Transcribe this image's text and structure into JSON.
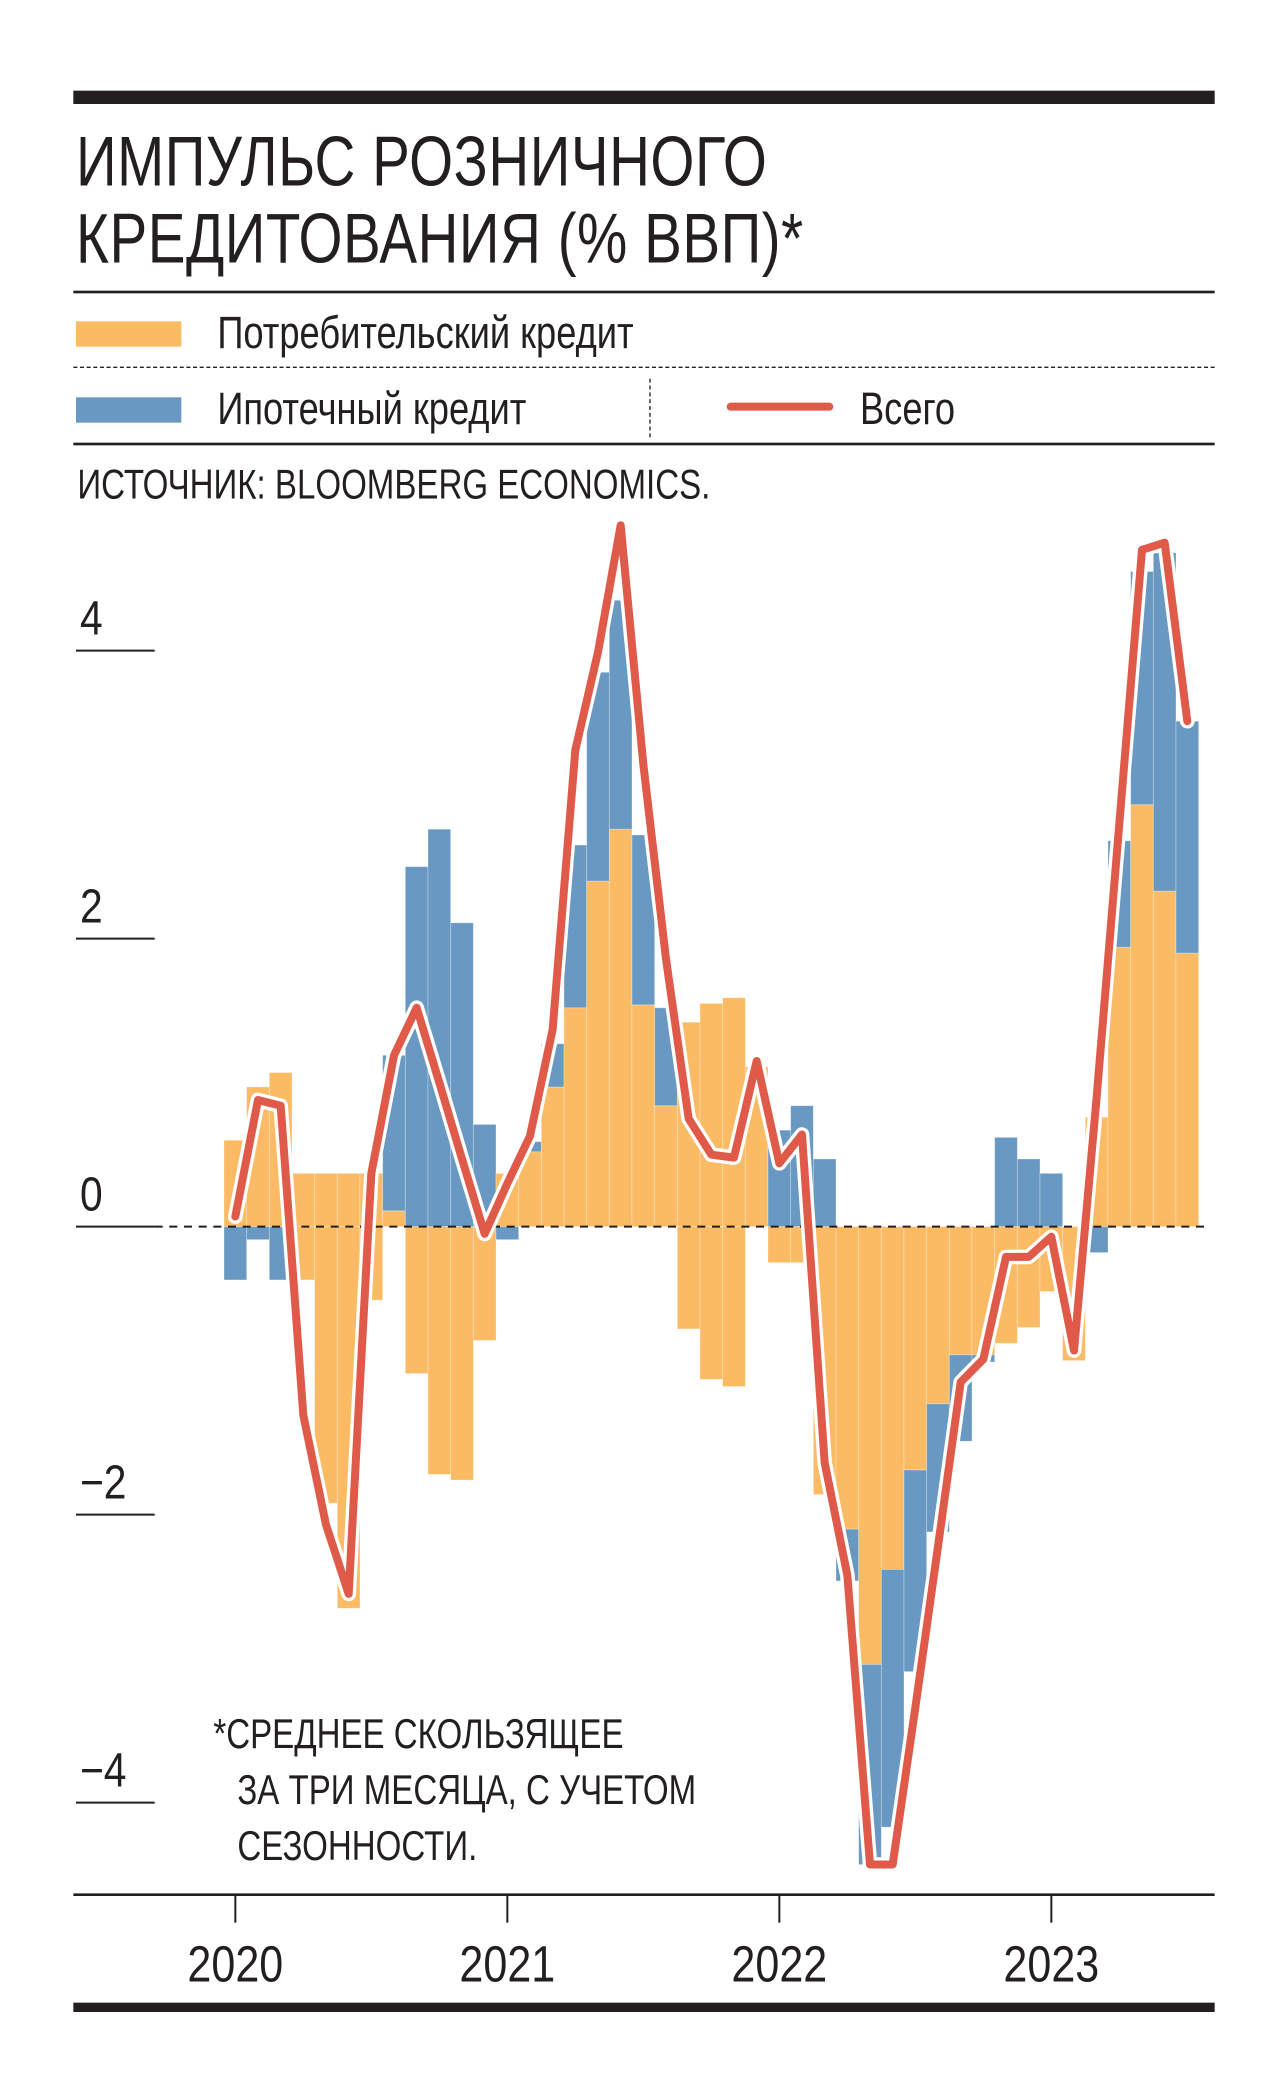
{
  "title": {
    "line1": "ИМПУЛЬС РОЗНИЧНОГО",
    "line2": "КРЕДИТОВАНИЯ (% ВВП)*"
  },
  "legend": {
    "consumer": "Потребительский кредит",
    "mortgage": "Ипотечный кредит",
    "total": "Всего"
  },
  "source": "ИСТОЧНИК: BLOOMBERG ECONOMICS.",
  "footnote": {
    "line1": "*СРЕДНЕЕ СКОЛЬЗЯЩЕЕ",
    "line2": "ЗА ТРИ МЕСЯЦА, С УЧЕТОМ",
    "line3": "СЕЗОННОСТИ."
  },
  "colors": {
    "consumer": "#fbbb64",
    "mortgage": "#6999c2",
    "total": "#e05a4a",
    "text": "#231f20"
  },
  "chart_data": {
    "type": "bar",
    "stacked": true,
    "grid": false,
    "legend_position": "top",
    "ylim": [
      -4.6,
      5.0
    ],
    "y_ticks": [
      {
        "value": 4,
        "label": "4"
      },
      {
        "value": 2,
        "label": "2"
      },
      {
        "value": 0,
        "label": "0"
      },
      {
        "value": -2,
        "label": "−2"
      },
      {
        "value": -4,
        "label": "−4"
      }
    ],
    "x_ticks": [
      {
        "month_index": 0,
        "label": "2020"
      },
      {
        "month_index": 12,
        "label": "2021"
      },
      {
        "month_index": 24,
        "label": "2022"
      },
      {
        "month_index": 36,
        "label": "2023"
      }
    ],
    "months": [
      "2020-01",
      "2020-02",
      "2020-03",
      "2020-04",
      "2020-05",
      "2020-06",
      "2020-07",
      "2020-08",
      "2020-09",
      "2020-10",
      "2020-11",
      "2020-12",
      "2021-01",
      "2021-02",
      "2021-03",
      "2021-04",
      "2021-05",
      "2021-06",
      "2021-07",
      "2021-08",
      "2021-09",
      "2021-10",
      "2021-11",
      "2021-12",
      "2022-01",
      "2022-02",
      "2022-03",
      "2022-04",
      "2022-05",
      "2022-06",
      "2022-07",
      "2022-08",
      "2022-09",
      "2022-10",
      "2022-11",
      "2022-12",
      "2023-01",
      "2023-02",
      "2023-03",
      "2023-04",
      "2023-05",
      "2023-06",
      "2023-07"
    ],
    "series": [
      {
        "name": "Потребительский кредит",
        "type": "bar",
        "positive": [
          0.6,
          0.97,
          1.07,
          0.37,
          0.37,
          0.37,
          0.37,
          0.11,
          0,
          0,
          0,
          0,
          0.37,
          0.52,
          0.97,
          1.52,
          2.4,
          2.76,
          1.54,
          0.84,
          1.42,
          1.55,
          1.59,
          1.11,
          0,
          0,
          0,
          0,
          0,
          0,
          0,
          0,
          0,
          0,
          0,
          0,
          0,
          0,
          0.76,
          1.94,
          2.93,
          2.33,
          1.9
        ],
        "negative": [
          0,
          0,
          0,
          -0.37,
          -1.92,
          -2.65,
          -0.51,
          0,
          -1.02,
          -1.72,
          -1.76,
          -0.79,
          0,
          0,
          0,
          0,
          0,
          0,
          0,
          0,
          -0.71,
          -1.06,
          -1.11,
          0,
          -0.25,
          -0.25,
          -1.86,
          -2.1,
          -3.04,
          -2.38,
          -1.69,
          -1.23,
          -0.89,
          -0.89,
          -0.81,
          -0.7,
          -0.45,
          -0.93,
          0,
          0,
          0,
          0,
          0
        ]
      },
      {
        "name": "Ипотечный кредит",
        "type": "bar",
        "positive": [
          0,
          0,
          0,
          0,
          0,
          0,
          0,
          1.08,
          2.5,
          2.76,
          2.11,
          0.71,
          0,
          0.07,
          0.3,
          1.13,
          1.45,
          1.59,
          1.18,
          0.68,
          0,
          0,
          0,
          0,
          0.67,
          0.84,
          0.47,
          0,
          0,
          0,
          0,
          0,
          0,
          0,
          0.62,
          0.47,
          0.37,
          0,
          0,
          0.74,
          1.62,
          2.35,
          1.61
        ],
        "negative": [
          -0.37,
          -0.09,
          -0.37,
          0,
          0,
          0,
          0,
          0,
          0,
          0,
          0,
          0,
          -0.09,
          0,
          0,
          0,
          0,
          0,
          0,
          0,
          0,
          0,
          0,
          0,
          0,
          0,
          0,
          -0.36,
          -1.39,
          -1.79,
          -1.4,
          -0.89,
          -0.6,
          -0.05,
          0,
          0,
          0,
          0,
          -0.18,
          0,
          0,
          0,
          0
        ]
      },
      {
        "name": "Всего",
        "type": "line",
        "values": [
          0.07,
          0.88,
          0.84,
          -1.31,
          -2.07,
          -2.55,
          0.37,
          1.19,
          1.52,
          1.0,
          0.47,
          -0.05,
          0.3,
          0.63,
          1.37,
          3.31,
          3.99,
          4.87,
          3.21,
          1.86,
          0.75,
          0.5,
          0.48,
          1.15,
          0.44,
          0.64,
          -1.64,
          -2.42,
          -4.43,
          -4.43,
          -3.34,
          -2.22,
          -1.08,
          -0.92,
          -0.21,
          -0.21,
          -0.07,
          -0.86,
          0.9,
          2.8,
          4.7,
          4.75,
          3.51
        ]
      }
    ]
  }
}
